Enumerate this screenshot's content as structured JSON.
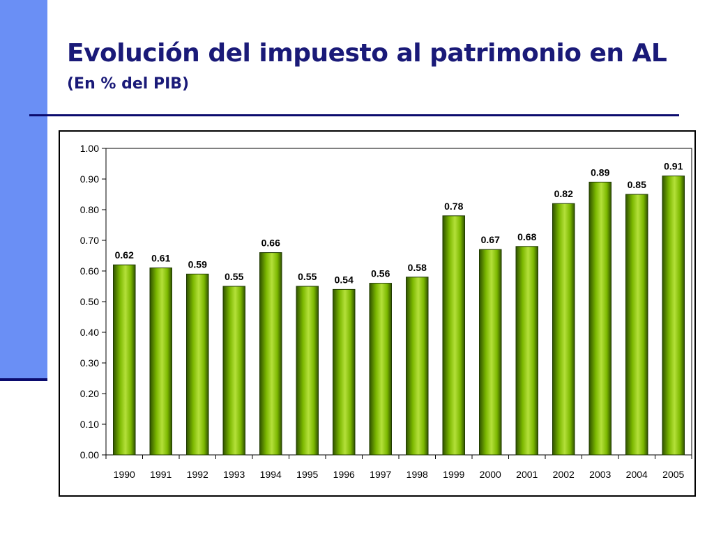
{
  "slide": {
    "title": "Evolución del impuesto al patrimonio en AL",
    "subtitle": "(En % del PIB)",
    "accent_color": "#6a8ff5",
    "rule_color": "#0b0b6e",
    "title_color": "#1a1a78"
  },
  "chart_data": {
    "type": "bar",
    "categories": [
      "1990",
      "1991",
      "1992",
      "1993",
      "1994",
      "1995",
      "1996",
      "1997",
      "1998",
      "1999",
      "2000",
      "2001",
      "2002",
      "2003",
      "2004",
      "2005"
    ],
    "values": [
      0.62,
      0.61,
      0.59,
      0.55,
      0.66,
      0.55,
      0.54,
      0.56,
      0.58,
      0.78,
      0.67,
      0.68,
      0.82,
      0.89,
      0.85,
      0.91
    ],
    "value_labels": [
      "0.62",
      "0.61",
      "0.59",
      "0.55",
      "0.66",
      "0.55",
      "0.54",
      "0.56",
      "0.58",
      "0.78",
      "0.67",
      "0.68",
      "0.82",
      "0.89",
      "0.85",
      "0.91"
    ],
    "y_ticks": [
      "0.00",
      "0.10",
      "0.20",
      "0.30",
      "0.40",
      "0.50",
      "0.60",
      "0.70",
      "0.80",
      "0.90",
      "1.00"
    ],
    "ylim": [
      0,
      1.0
    ],
    "grid": false,
    "legend": "none",
    "bar_color": "#7cb800",
    "bar_highlight": "#b4e03a",
    "bar_shadow": "#2f5200"
  }
}
